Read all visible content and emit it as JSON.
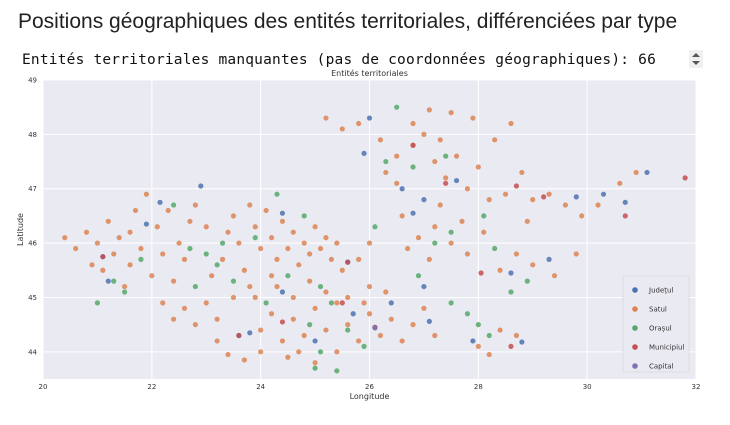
{
  "page": {
    "title": "Positions géographiques des entités territoriales, différenciées par type",
    "output_line": "Entités territoriales manquantes (pas de coordonnées géographiques): 66"
  },
  "chart_data": {
    "type": "scatter",
    "title": "Entités territoriales",
    "xlabel": "Longitude",
    "ylabel": "Latitude",
    "xlim": [
      20,
      32
    ],
    "ylim": [
      43.5,
      49
    ],
    "xticks": [
      20,
      22,
      24,
      26,
      28,
      30,
      32
    ],
    "yticks": [
      44,
      45,
      46,
      47,
      48,
      49
    ],
    "grid": true,
    "background": "#eaeaf2",
    "legend_position": "bottom-right",
    "series": [
      {
        "name": "Județul",
        "color": "#4c72b0",
        "points": [
          [
            21.9,
            46.35
          ],
          [
            22.15,
            46.75
          ],
          [
            21.1,
            45.75
          ],
          [
            24.4,
            46.55
          ],
          [
            23.6,
            44.3
          ],
          [
            25.6,
            45.65
          ],
          [
            26.0,
            48.3
          ],
          [
            25.9,
            47.65
          ],
          [
            26.6,
            47.0
          ],
          [
            26.8,
            46.55
          ],
          [
            27.6,
            47.15
          ],
          [
            27.0,
            45.2
          ],
          [
            27.9,
            44.2
          ],
          [
            28.6,
            45.45
          ],
          [
            28.8,
            44.18
          ],
          [
            26.1,
            44.45
          ],
          [
            26.4,
            44.9
          ],
          [
            25.7,
            44.7
          ],
          [
            27.1,
            44.56
          ],
          [
            24.4,
            45.1
          ],
          [
            23.8,
            44.35
          ],
          [
            29.8,
            46.85
          ],
          [
            30.7,
            46.75
          ],
          [
            31.1,
            47.3
          ],
          [
            30.3,
            46.9
          ],
          [
            29.3,
            45.7
          ],
          [
            25.0,
            44.2
          ],
          [
            22.9,
            47.05
          ],
          [
            21.2,
            45.3
          ],
          [
            27.0,
            46.8
          ]
        ]
      },
      {
        "name": "Satul",
        "color": "#dd8452",
        "points": [
          [
            20.4,
            46.1
          ],
          [
            20.6,
            45.9
          ],
          [
            20.8,
            46.2
          ],
          [
            20.9,
            45.6
          ],
          [
            21.0,
            46.0
          ],
          [
            21.1,
            45.5
          ],
          [
            21.2,
            46.4
          ],
          [
            21.3,
            45.8
          ],
          [
            21.4,
            46.1
          ],
          [
            21.5,
            45.2
          ],
          [
            21.6,
            45.6
          ],
          [
            21.7,
            46.6
          ],
          [
            21.8,
            45.9
          ],
          [
            21.9,
            46.9
          ],
          [
            22.0,
            45.4
          ],
          [
            22.1,
            46.3
          ],
          [
            22.2,
            45.8
          ],
          [
            22.3,
            46.6
          ],
          [
            22.4,
            45.3
          ],
          [
            22.5,
            46.0
          ],
          [
            22.6,
            45.7
          ],
          [
            22.7,
            46.4
          ],
          [
            22.2,
            44.9
          ],
          [
            22.4,
            44.6
          ],
          [
            22.6,
            44.8
          ],
          [
            22.8,
            44.5
          ],
          [
            23.0,
            44.9
          ],
          [
            23.2,
            44.6
          ],
          [
            23.1,
            45.4
          ],
          [
            23.3,
            45.7
          ],
          [
            23.4,
            46.2
          ],
          [
            23.5,
            46.5
          ],
          [
            23.6,
            46.0
          ],
          [
            23.7,
            45.5
          ],
          [
            23.8,
            46.7
          ],
          [
            23.9,
            46.3
          ],
          [
            24.0,
            45.9
          ],
          [
            24.1,
            46.6
          ],
          [
            24.2,
            46.1
          ],
          [
            24.3,
            45.7
          ],
          [
            24.4,
            46.4
          ],
          [
            24.5,
            45.9
          ],
          [
            24.6,
            46.2
          ],
          [
            24.7,
            45.6
          ],
          [
            24.8,
            46.0
          ],
          [
            24.9,
            45.8
          ],
          [
            25.0,
            46.3
          ],
          [
            25.1,
            45.9
          ],
          [
            25.2,
            46.1
          ],
          [
            25.3,
            45.7
          ],
          [
            25.4,
            46.0
          ],
          [
            25.5,
            45.5
          ],
          [
            24.0,
            44.4
          ],
          [
            24.2,
            44.7
          ],
          [
            24.4,
            44.2
          ],
          [
            24.6,
            44.6
          ],
          [
            24.8,
            44.3
          ],
          [
            25.0,
            44.8
          ],
          [
            25.2,
            44.4
          ],
          [
            25.4,
            44.9
          ],
          [
            25.6,
            44.5
          ],
          [
            25.8,
            44.2
          ],
          [
            26.0,
            44.7
          ],
          [
            26.2,
            44.3
          ],
          [
            26.4,
            44.6
          ],
          [
            26.6,
            44.2
          ],
          [
            26.8,
            44.5
          ],
          [
            27.0,
            44.8
          ],
          [
            27.2,
            44.3
          ],
          [
            23.4,
            43.95
          ],
          [
            23.7,
            43.85
          ],
          [
            24.0,
            44.0
          ],
          [
            24.5,
            43.9
          ],
          [
            25.0,
            43.8
          ],
          [
            25.4,
            44.0
          ],
          [
            24.3,
            45.2
          ],
          [
            24.6,
            45.0
          ],
          [
            24.9,
            45.3
          ],
          [
            25.2,
            45.1
          ],
          [
            25.6,
            45.0
          ],
          [
            26.0,
            45.2
          ],
          [
            26.3,
            45.1
          ],
          [
            23.5,
            45.0
          ],
          [
            23.8,
            45.2
          ],
          [
            23.2,
            44.2
          ],
          [
            25.2,
            48.3
          ],
          [
            25.5,
            48.1
          ],
          [
            25.8,
            48.2
          ],
          [
            26.2,
            47.9
          ],
          [
            26.5,
            47.6
          ],
          [
            26.8,
            47.8
          ],
          [
            27.0,
            48.0
          ],
          [
            27.2,
            47.5
          ],
          [
            27.4,
            47.2
          ],
          [
            27.6,
            47.6
          ],
          [
            27.8,
            47.0
          ],
          [
            28.0,
            47.4
          ],
          [
            28.2,
            46.8
          ],
          [
            26.3,
            47.3
          ],
          [
            26.6,
            46.5
          ],
          [
            26.9,
            46.1
          ],
          [
            27.2,
            46.3
          ],
          [
            27.5,
            46.0
          ],
          [
            27.8,
            45.8
          ],
          [
            28.1,
            46.2
          ],
          [
            28.4,
            45.5
          ],
          [
            28.7,
            45.8
          ],
          [
            28.9,
            46.4
          ],
          [
            28.5,
            46.9
          ],
          [
            28.8,
            47.3
          ],
          [
            29.0,
            46.8
          ],
          [
            29.3,
            46.9
          ],
          [
            29.6,
            46.7
          ],
          [
            29.9,
            46.5
          ],
          [
            30.2,
            46.7
          ],
          [
            30.6,
            47.1
          ],
          [
            30.9,
            47.3
          ],
          [
            28.6,
            48.2
          ],
          [
            28.3,
            47.9
          ],
          [
            27.9,
            48.3
          ],
          [
            27.5,
            48.4
          ],
          [
            27.1,
            48.45
          ],
          [
            26.8,
            48.2
          ],
          [
            27.3,
            47.9
          ],
          [
            28.0,
            44.1
          ],
          [
            28.2,
            43.95
          ],
          [
            28.4,
            44.4
          ],
          [
            28.7,
            44.3
          ],
          [
            29.0,
            45.6
          ],
          [
            29.4,
            45.4
          ],
          [
            29.8,
            45.8
          ],
          [
            26.7,
            45.9
          ],
          [
            27.1,
            45.7
          ],
          [
            27.3,
            46.7
          ],
          [
            26.5,
            47.1
          ],
          [
            27.7,
            46.4
          ],
          [
            21.6,
            46.2
          ],
          [
            22.8,
            46.7
          ],
          [
            23.0,
            46.3
          ],
          [
            23.9,
            45.0
          ],
          [
            24.2,
            45.4
          ],
          [
            25.8,
            45.7
          ],
          [
            26.0,
            46.0
          ],
          [
            24.7,
            44.0
          ],
          [
            25.9,
            44.9
          ]
        ]
      },
      {
        "name": "Orașul",
        "color": "#55a868",
        "points": [
          [
            21.3,
            45.3
          ],
          [
            21.5,
            45.1
          ],
          [
            21.8,
            45.7
          ],
          [
            22.4,
            46.7
          ],
          [
            22.8,
            45.2
          ],
          [
            23.0,
            45.8
          ],
          [
            23.2,
            45.6
          ],
          [
            23.5,
            45.3
          ],
          [
            23.9,
            46.1
          ],
          [
            24.3,
            46.9
          ],
          [
            24.5,
            45.4
          ],
          [
            24.8,
            46.5
          ],
          [
            25.1,
            45.2
          ],
          [
            25.3,
            44.9
          ],
          [
            25.6,
            44.4
          ],
          [
            25.9,
            44.1
          ],
          [
            25.1,
            44.0
          ],
          [
            24.9,
            44.5
          ],
          [
            26.3,
            47.5
          ],
          [
            26.5,
            48.5
          ],
          [
            26.8,
            47.4
          ],
          [
            27.4,
            47.6
          ],
          [
            28.1,
            46.5
          ],
          [
            28.3,
            45.9
          ],
          [
            28.6,
            45.1
          ],
          [
            28.9,
            45.3
          ],
          [
            27.5,
            44.9
          ],
          [
            27.8,
            44.7
          ],
          [
            28.2,
            44.3
          ],
          [
            26.9,
            45.4
          ],
          [
            27.2,
            46.0
          ],
          [
            27.5,
            46.2
          ],
          [
            28.0,
            44.5
          ],
          [
            25.0,
            43.7
          ],
          [
            25.4,
            43.65
          ],
          [
            22.7,
            45.9
          ],
          [
            24.1,
            44.9
          ],
          [
            26.1,
            46.3
          ],
          [
            21.0,
            44.9
          ],
          [
            23.3,
            46.0
          ]
        ]
      },
      {
        "name": "Municipiul",
        "color": "#c44e52",
        "points": [
          [
            21.1,
            45.75
          ],
          [
            25.6,
            45.65
          ],
          [
            26.1,
            44.45
          ],
          [
            28.05,
            45.45
          ],
          [
            28.7,
            47.05
          ],
          [
            29.2,
            46.85
          ],
          [
            30.7,
            46.5
          ],
          [
            31.8,
            47.2
          ],
          [
            23.6,
            44.3
          ],
          [
            24.4,
            44.55
          ],
          [
            26.8,
            47.8
          ],
          [
            28.6,
            44.1
          ],
          [
            25.5,
            44.9
          ],
          [
            27.4,
            47.1
          ]
        ]
      },
      {
        "name": "Capital",
        "color": "#8172b3",
        "points": [
          [
            26.1,
            44.44
          ]
        ]
      }
    ]
  }
}
